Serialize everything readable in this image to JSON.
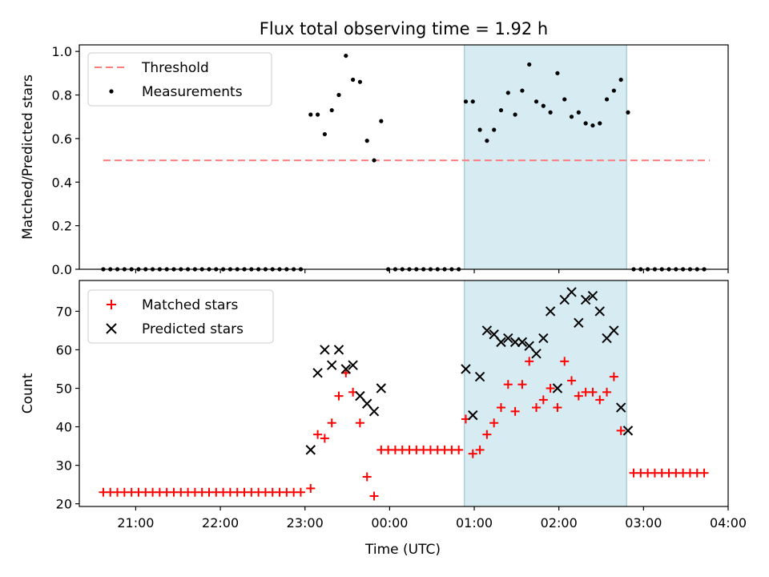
{
  "title": "Flux total observing time = 1.92 h",
  "chart_data": [
    {
      "type": "scatter",
      "ylabel": "Matched/Predicted stars",
      "xlim": [
        "20:20",
        "04:00"
      ],
      "ylim": [
        0,
        1.03
      ],
      "yticks": [
        "0.0",
        "0.2",
        "0.4",
        "0.6",
        "0.8",
        "1.0"
      ],
      "ytick_values": [
        0,
        0.2,
        0.4,
        0.6,
        0.8,
        1.0
      ],
      "legend_position": "top-left",
      "legend": [
        "Threshold",
        "Measurements"
      ],
      "highlight_span": {
        "from": "00:53",
        "to": "02:48",
        "color": "#add8e6"
      },
      "threshold": {
        "name": "Threshold",
        "value": 0.5,
        "from": "20:37",
        "to": "03:47",
        "color": "#ff7f7f"
      },
      "series": [
        {
          "name": "Measurements",
          "color": "#000000",
          "points": [
            [
              "20:37",
              0
            ],
            [
              "20:42",
              0
            ],
            [
              "20:47",
              0
            ],
            [
              "20:52",
              0
            ],
            [
              "20:57",
              0
            ],
            [
              "21:02",
              0
            ],
            [
              "21:07",
              0
            ],
            [
              "21:12",
              0
            ],
            [
              "21:17",
              0
            ],
            [
              "21:22",
              0
            ],
            [
              "21:27",
              0
            ],
            [
              "21:32",
              0
            ],
            [
              "21:37",
              0
            ],
            [
              "21:42",
              0
            ],
            [
              "21:47",
              0
            ],
            [
              "21:52",
              0
            ],
            [
              "21:57",
              0
            ],
            [
              "22:02",
              0
            ],
            [
              "22:07",
              0
            ],
            [
              "22:12",
              0
            ],
            [
              "22:17",
              0
            ],
            [
              "22:22",
              0
            ],
            [
              "22:27",
              0
            ],
            [
              "22:32",
              0
            ],
            [
              "22:37",
              0
            ],
            [
              "22:42",
              0
            ],
            [
              "22:47",
              0
            ],
            [
              "22:52",
              0
            ],
            [
              "22:57",
              0
            ],
            [
              "23:04",
              0.71
            ],
            [
              "23:09",
              0.71
            ],
            [
              "23:14",
              0.62
            ],
            [
              "23:19",
              0.73
            ],
            [
              "23:24",
              0.8
            ],
            [
              "23:29",
              0.98
            ],
            [
              "23:34",
              0.87
            ],
            [
              "23:39",
              0.86
            ],
            [
              "23:44",
              0.59
            ],
            [
              "23:49",
              0.5
            ],
            [
              "23:54",
              0.68
            ],
            [
              "23:59",
              0
            ],
            [
              "00:04",
              0
            ],
            [
              "00:09",
              0
            ],
            [
              "00:14",
              0
            ],
            [
              "00:19",
              0
            ],
            [
              "00:24",
              0
            ],
            [
              "00:29",
              0
            ],
            [
              "00:34",
              0
            ],
            [
              "00:39",
              0
            ],
            [
              "00:44",
              0
            ],
            [
              "00:49",
              0
            ],
            [
              "00:54",
              0.77
            ],
            [
              "00:59",
              0.77
            ],
            [
              "01:04",
              0.64
            ],
            [
              "01:09",
              0.59
            ],
            [
              "01:14",
              0.64
            ],
            [
              "01:19",
              0.73
            ],
            [
              "01:24",
              0.81
            ],
            [
              "01:29",
              0.71
            ],
            [
              "01:34",
              0.82
            ],
            [
              "01:39",
              0.94
            ],
            [
              "01:44",
              0.77
            ],
            [
              "01:49",
              0.75
            ],
            [
              "01:54",
              0.72
            ],
            [
              "01:59",
              0.9
            ],
            [
              "02:04",
              0.78
            ],
            [
              "02:09",
              0.7
            ],
            [
              "02:14",
              0.72
            ],
            [
              "02:19",
              0.67
            ],
            [
              "02:24",
              0.66
            ],
            [
              "02:29",
              0.67
            ],
            [
              "02:34",
              0.78
            ],
            [
              "02:39",
              0.82
            ],
            [
              "02:44",
              0.87
            ],
            [
              "02:49",
              0.72
            ],
            [
              "02:53",
              0
            ],
            [
              "02:58",
              0
            ],
            [
              "03:03",
              0
            ],
            [
              "03:08",
              0
            ],
            [
              "03:13",
              0
            ],
            [
              "03:18",
              0
            ],
            [
              "03:23",
              0
            ],
            [
              "03:28",
              0
            ],
            [
              "03:33",
              0
            ],
            [
              "03:38",
              0
            ],
            [
              "03:43",
              0
            ]
          ]
        }
      ]
    },
    {
      "type": "scatter",
      "xlabel": "Time (UTC)",
      "ylabel": "Count",
      "xlim": [
        "20:20",
        "04:00"
      ],
      "ylim": [
        19.3,
        78
      ],
      "xticks": [
        "21:00",
        "22:00",
        "23:00",
        "00:00",
        "01:00",
        "02:00",
        "03:00",
        "04:00"
      ],
      "yticks": [
        "20",
        "30",
        "40",
        "50",
        "60",
        "70"
      ],
      "ytick_values": [
        20,
        30,
        40,
        50,
        60,
        70
      ],
      "legend_position": "top-left",
      "legend": [
        "Matched stars",
        "Predicted stars"
      ],
      "highlight_span": {
        "from": "00:53",
        "to": "02:48",
        "color": "#add8e6"
      },
      "series": [
        {
          "name": "Matched stars",
          "marker": "plus",
          "color": "#ff0000",
          "points": [
            [
              "20:37",
              23
            ],
            [
              "20:42",
              23
            ],
            [
              "20:47",
              23
            ],
            [
              "20:52",
              23
            ],
            [
              "20:57",
              23
            ],
            [
              "21:02",
              23
            ],
            [
              "21:07",
              23
            ],
            [
              "21:12",
              23
            ],
            [
              "21:17",
              23
            ],
            [
              "21:22",
              23
            ],
            [
              "21:27",
              23
            ],
            [
              "21:32",
              23
            ],
            [
              "21:37",
              23
            ],
            [
              "21:42",
              23
            ],
            [
              "21:47",
              23
            ],
            [
              "21:52",
              23
            ],
            [
              "21:57",
              23
            ],
            [
              "22:02",
              23
            ],
            [
              "22:07",
              23
            ],
            [
              "22:12",
              23
            ],
            [
              "22:17",
              23
            ],
            [
              "22:22",
              23
            ],
            [
              "22:27",
              23
            ],
            [
              "22:32",
              23
            ],
            [
              "22:37",
              23
            ],
            [
              "22:42",
              23
            ],
            [
              "22:47",
              23
            ],
            [
              "22:52",
              23
            ],
            [
              "22:57",
              23
            ],
            [
              "23:04",
              24
            ],
            [
              "23:09",
              38
            ],
            [
              "23:14",
              37
            ],
            [
              "23:19",
              41
            ],
            [
              "23:24",
              48
            ],
            [
              "23:29",
              54
            ],
            [
              "23:34",
              49
            ],
            [
              "23:39",
              41
            ],
            [
              "23:44",
              27
            ],
            [
              "23:49",
              22
            ],
            [
              "23:54",
              34
            ],
            [
              "23:59",
              34
            ],
            [
              "00:04",
              34
            ],
            [
              "00:09",
              34
            ],
            [
              "00:14",
              34
            ],
            [
              "00:19",
              34
            ],
            [
              "00:24",
              34
            ],
            [
              "00:29",
              34
            ],
            [
              "00:34",
              34
            ],
            [
              "00:39",
              34
            ],
            [
              "00:44",
              34
            ],
            [
              "00:49",
              34
            ],
            [
              "00:54",
              42
            ],
            [
              "00:59",
              33
            ],
            [
              "01:04",
              34
            ],
            [
              "01:09",
              38
            ],
            [
              "01:14",
              41
            ],
            [
              "01:19",
              45
            ],
            [
              "01:24",
              51
            ],
            [
              "01:29",
              44
            ],
            [
              "01:34",
              51
            ],
            [
              "01:39",
              57
            ],
            [
              "01:44",
              45
            ],
            [
              "01:49",
              47
            ],
            [
              "01:54",
              50
            ],
            [
              "01:59",
              45
            ],
            [
              "02:04",
              57
            ],
            [
              "02:09",
              52
            ],
            [
              "02:14",
              48
            ],
            [
              "02:19",
              49
            ],
            [
              "02:24",
              49
            ],
            [
              "02:29",
              47
            ],
            [
              "02:34",
              49
            ],
            [
              "02:39",
              53
            ],
            [
              "02:44",
              39
            ],
            [
              "02:53",
              28
            ],
            [
              "02:58",
              28
            ],
            [
              "03:03",
              28
            ],
            [
              "03:08",
              28
            ],
            [
              "03:13",
              28
            ],
            [
              "03:18",
              28
            ],
            [
              "03:23",
              28
            ],
            [
              "03:28",
              28
            ],
            [
              "03:33",
              28
            ],
            [
              "03:38",
              28
            ],
            [
              "03:43",
              28
            ]
          ]
        },
        {
          "name": "Predicted stars",
          "marker": "x",
          "color": "#000000",
          "points": [
            [
              "23:04",
              34
            ],
            [
              "23:09",
              54
            ],
            [
              "23:14",
              60
            ],
            [
              "23:19",
              56
            ],
            [
              "23:24",
              60
            ],
            [
              "23:29",
              55
            ],
            [
              "23:34",
              56
            ],
            [
              "23:39",
              48
            ],
            [
              "23:44",
              46
            ],
            [
              "23:49",
              44
            ],
            [
              "23:54",
              50
            ],
            [
              "00:54",
              55
            ],
            [
              "00:59",
              43
            ],
            [
              "01:04",
              53
            ],
            [
              "01:09",
              65
            ],
            [
              "01:14",
              64
            ],
            [
              "01:19",
              62
            ],
            [
              "01:24",
              63
            ],
            [
              "01:29",
              62
            ],
            [
              "01:34",
              62
            ],
            [
              "01:39",
              61
            ],
            [
              "01:44",
              59
            ],
            [
              "01:49",
              63
            ],
            [
              "01:54",
              70
            ],
            [
              "01:59",
              50
            ],
            [
              "02:04",
              73
            ],
            [
              "02:09",
              75
            ],
            [
              "02:14",
              67
            ],
            [
              "02:19",
              73
            ],
            [
              "02:24",
              74
            ],
            [
              "02:29",
              70
            ],
            [
              "02:34",
              63
            ],
            [
              "02:39",
              65
            ],
            [
              "02:44",
              45
            ],
            [
              "02:49",
              39
            ]
          ]
        }
      ]
    }
  ]
}
